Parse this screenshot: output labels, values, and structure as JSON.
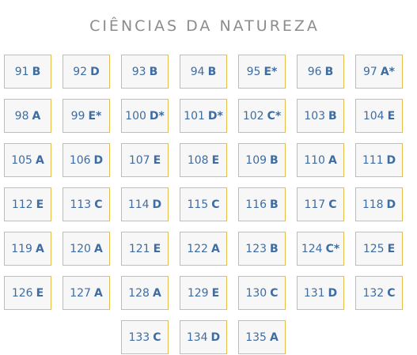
{
  "title": "CIÊNCIAS DA NATUREZA",
  "colors": {
    "title": "#8c8c8c",
    "cell_border": "#e8be4a",
    "cell_background": "#f7f7f7",
    "cell_text": "#3e6da3"
  },
  "answers": [
    {
      "question": "91",
      "answer": "B"
    },
    {
      "question": "92",
      "answer": "D"
    },
    {
      "question": "93",
      "answer": "B"
    },
    {
      "question": "94",
      "answer": "B"
    },
    {
      "question": "95",
      "answer": "E*"
    },
    {
      "question": "96",
      "answer": "B"
    },
    {
      "question": "97",
      "answer": "A*"
    },
    {
      "question": "98",
      "answer": "A"
    },
    {
      "question": "99",
      "answer": "E*"
    },
    {
      "question": "100",
      "answer": "D*"
    },
    {
      "question": "101",
      "answer": "D*"
    },
    {
      "question": "102",
      "answer": "C*"
    },
    {
      "question": "103",
      "answer": "B"
    },
    {
      "question": "104",
      "answer": "E"
    },
    {
      "question": "105",
      "answer": "A"
    },
    {
      "question": "106",
      "answer": "D"
    },
    {
      "question": "107",
      "answer": "E"
    },
    {
      "question": "108",
      "answer": "E"
    },
    {
      "question": "109",
      "answer": "B"
    },
    {
      "question": "110",
      "answer": "A"
    },
    {
      "question": "111",
      "answer": "D"
    },
    {
      "question": "112",
      "answer": "E"
    },
    {
      "question": "113",
      "answer": "C"
    },
    {
      "question": "114",
      "answer": "D"
    },
    {
      "question": "115",
      "answer": "C"
    },
    {
      "question": "116",
      "answer": "B"
    },
    {
      "question": "117",
      "answer": "C"
    },
    {
      "question": "118",
      "answer": "D"
    },
    {
      "question": "119",
      "answer": "A"
    },
    {
      "question": "120",
      "answer": "A"
    },
    {
      "question": "121",
      "answer": "E"
    },
    {
      "question": "122",
      "answer": "A"
    },
    {
      "question": "123",
      "answer": "B"
    },
    {
      "question": "124",
      "answer": "C*"
    },
    {
      "question": "125",
      "answer": "E"
    },
    {
      "question": "126",
      "answer": "E"
    },
    {
      "question": "127",
      "answer": "A"
    },
    {
      "question": "128",
      "answer": "A"
    },
    {
      "question": "129",
      "answer": "E"
    },
    {
      "question": "130",
      "answer": "C"
    },
    {
      "question": "131",
      "answer": "D"
    },
    {
      "question": "132",
      "answer": "C"
    },
    {
      "question": "133",
      "answer": "C"
    },
    {
      "question": "134",
      "answer": "D"
    },
    {
      "question": "135",
      "answer": "A"
    }
  ]
}
